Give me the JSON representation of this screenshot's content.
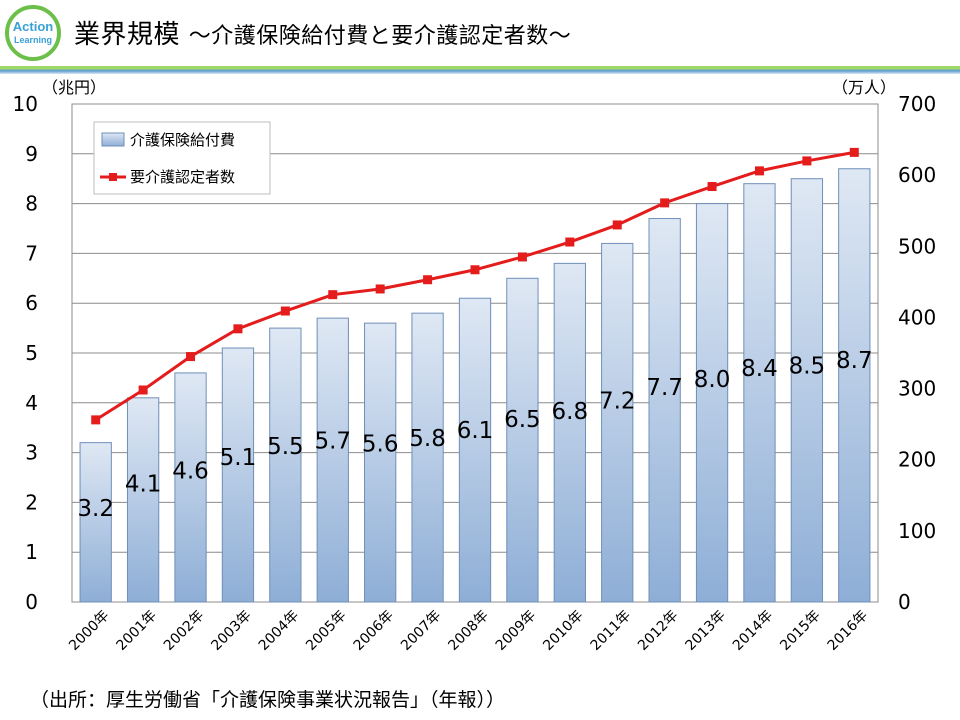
{
  "header": {
    "logo_line1": "Action",
    "logo_line2": "Learning",
    "title": "業界規模",
    "subtitle": "～介護保険給付費と要介護認定者数～"
  },
  "colors": {
    "bar_top": "#dfe8f4",
    "bar_bottom": "#8eaed6",
    "bar_stroke": "#6f8fb8",
    "line": "#e41c1c",
    "logo_ring": "#6cc04a",
    "logo_text": "#3aa0d8"
  },
  "chart_data": {
    "type": "bar+line",
    "categories": [
      "2000年",
      "2001年",
      "2002年",
      "2003年",
      "2004年",
      "2005年",
      "2006年",
      "2007年",
      "2008年",
      "2009年",
      "2010年",
      "2011年",
      "2012年",
      "2013年",
      "2014年",
      "2015年",
      "2016年"
    ],
    "series": [
      {
        "name": "介護保険給付費",
        "type": "bar",
        "axis": "left",
        "values": [
          3.2,
          4.1,
          4.6,
          5.1,
          5.5,
          5.7,
          5.6,
          5.8,
          6.1,
          6.5,
          6.8,
          7.2,
          7.7,
          8.0,
          8.4,
          8.5,
          8.7
        ],
        "labels": [
          "3.2",
          "4.1",
          "4.6",
          "5.1",
          "5.5",
          "5.7",
          "5.6",
          "5.8",
          "6.1",
          "6.5",
          "6.8",
          "7.2",
          "7.7",
          "8.0",
          "8.4",
          "8.5",
          "8.7"
        ]
      },
      {
        "name": "要介護認定者数",
        "type": "line",
        "axis": "right",
        "values": [
          256,
          298,
          345,
          384,
          409,
          432,
          440,
          453,
          467,
          485,
          506,
          530,
          561,
          584,
          606,
          620,
          632
        ]
      }
    ],
    "y_left": {
      "label": "（兆円）",
      "min": 0,
      "max": 10,
      "ticks": [
        "0",
        "1",
        "2",
        "3",
        "4",
        "5",
        "6",
        "7",
        "8",
        "9",
        "10"
      ]
    },
    "y_right": {
      "label": "（万人）",
      "min": 0,
      "max": 700,
      "ticks": [
        "0",
        "100",
        "200",
        "300",
        "400",
        "500",
        "600",
        "700"
      ]
    },
    "grid": true,
    "legend_position": "top-left"
  },
  "footer": {
    "source": "（出所：厚生労働省「介護保険事業状況報告」（年報））"
  }
}
